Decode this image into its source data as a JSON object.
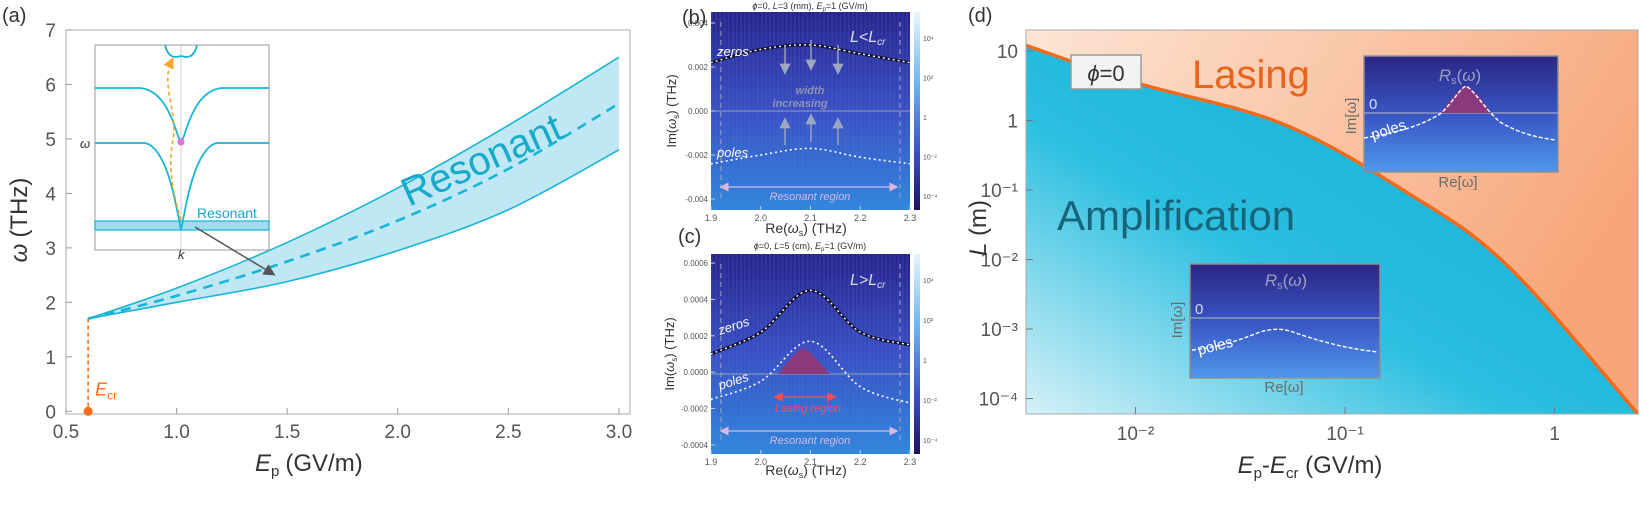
{
  "chart_data": [
    {
      "panel": "(a)",
      "type": "area",
      "xlabel_main": "E",
      "xlabel_sub": "p",
      "xlabel_unit": "(GV/m)",
      "ylabel_main": "ω",
      "ylabel_unit": "(THz)",
      "xlim": [
        0.5,
        3.05
      ],
      "ylim": [
        -0.05,
        7
      ],
      "xticks": [
        "0.5",
        "1.0",
        "1.5",
        "2.0",
        "2.5",
        "3.0"
      ],
      "yticks": [
        "0",
        "1",
        "2",
        "3",
        "4",
        "5",
        "6",
        "7"
      ],
      "band_lower": [
        [
          0.6,
          1.7
        ],
        [
          1.0,
          2.0
        ],
        [
          1.5,
          2.38
        ],
        [
          2.0,
          2.95
        ],
        [
          2.5,
          3.7
        ],
        [
          3.0,
          4.8
        ]
      ],
      "band_upper": [
        [
          0.6,
          1.7
        ],
        [
          1.0,
          2.26
        ],
        [
          1.5,
          3.1
        ],
        [
          2.0,
          4.1
        ],
        [
          2.5,
          5.25
        ],
        [
          3.0,
          6.5
        ]
      ],
      "center_line": [
        [
          0.6,
          1.7
        ],
        [
          1.0,
          2.12
        ],
        [
          1.5,
          2.75
        ],
        [
          2.0,
          3.5
        ],
        [
          2.5,
          4.45
        ],
        [
          3.0,
          5.65
        ]
      ],
      "band_label": "Resonant",
      "critical_point": {
        "x": 0.6,
        "y": 0,
        "label_main": "E",
        "label_sub": "cr"
      },
      "inset": {
        "xlabel": "k",
        "ylabel": "ω",
        "band_label": "Resonant"
      },
      "colors": {
        "band": "#bfe8f4",
        "line": "#17b5d6",
        "critical": "#ff6a13",
        "arrow": "#f0a830"
      }
    },
    {
      "panel": "(b)",
      "type": "heatmap",
      "title": "ϕ=0, L=3 (mm), E_p=1 (GV/m)",
      "xlabel": "Re(ω_s) (THz)",
      "ylabel": "Im(ω_s) (THz)",
      "xticks": [
        "1.9",
        "2.0",
        "2.1",
        "2.2",
        "2.3"
      ],
      "yticks": [
        "0.004",
        "0.002",
        "0.000",
        "-0.002",
        "-0.004"
      ],
      "corner_label": "L<L_cr",
      "zeros_label": "zeros",
      "poles_label": "poles",
      "note_line1": "width",
      "note_line2": "increasing",
      "region_label": "Resonant region",
      "colorbar_ticks": [
        "10⁴",
        "10²",
        "1",
        "10⁻²",
        "10⁻⁴"
      ],
      "zeros": {
        "x": [
          1.9,
          2.0,
          2.1,
          2.2,
          2.3
        ],
        "y": [
          0.0022,
          0.0028,
          0.003,
          0.0026,
          0.0022
        ]
      },
      "poles": {
        "x": [
          1.9,
          2.0,
          2.1,
          2.2,
          2.3
        ],
        "y": [
          -0.0024,
          -0.002,
          -0.0017,
          -0.0021,
          -0.0024
        ]
      }
    },
    {
      "panel": "(c)",
      "type": "heatmap",
      "title": "ϕ=0, L=5 (cm), E_p=1 (GV/m)",
      "xlabel": "Re(ω_s) (THz)",
      "ylabel": "Im(ω_s) (THz)",
      "xticks": [
        "1.9",
        "2.0",
        "2.1",
        "2.2",
        "2.3"
      ],
      "yticks": [
        "0.0006",
        "0.0004",
        "0.0002",
        "0.0000",
        "-0.0002",
        "-0.0004"
      ],
      "corner_label": "L>L_cr",
      "zeros_label": "zeros",
      "poles_label": "poles",
      "lasing_label": "Lasing region",
      "region_label": "Resonant region",
      "colorbar_ticks": [
        "10⁴",
        "10²",
        "1",
        "10⁻²",
        "10⁻⁴"
      ],
      "zeros": {
        "x": [
          1.9,
          2.0,
          2.1,
          2.2,
          2.3
        ],
        "y": [
          0.0001,
          0.00022,
          0.00045,
          0.00022,
          0.00015
        ]
      },
      "poles": {
        "x": [
          1.9,
          2.0,
          2.1,
          2.2,
          2.3
        ],
        "y": [
          -0.00015,
          -5e-05,
          0.00017,
          -8e-05,
          -0.00017
        ]
      }
    },
    {
      "panel": "(d)",
      "type": "area",
      "xscale": "log",
      "yscale": "log",
      "xlabel": "E_p-E_cr (GV/m)",
      "ylabel": "L (m)",
      "xlim": [
        0.003,
        2.5
      ],
      "ylim": [
        6e-05,
        20
      ],
      "xticks": [
        "10⁻²",
        "10⁻¹",
        "1"
      ],
      "yticks": [
        "10",
        "1",
        "10⁻¹",
        "10⁻²",
        "10⁻³",
        "10⁻⁴"
      ],
      "boundary": [
        [
          0.003,
          12
        ],
        [
          0.01,
          3.5
        ],
        [
          0.05,
          0.9
        ],
        [
          0.2,
          0.09
        ],
        [
          0.6,
          0.008
        ],
        [
          2.5,
          6e-05
        ]
      ],
      "upper_region_label": "Lasing",
      "lower_region_label": "Amplification",
      "phase_label": "ϕ=0",
      "inset_upper": {
        "title": "R_s(ω)",
        "ylabel": "Im[ω]",
        "xlabel": "Re[ω]",
        "zero": "0",
        "poles_label": "poles"
      },
      "inset_lower": {
        "title": "R_s(ω)",
        "ylabel": "Im[ω]",
        "xlabel": "Re[ω]",
        "zero": "0",
        "poles_label": "poles"
      },
      "colors": {
        "boundary": "#f26a1b",
        "lasing": "#fbc5a3",
        "amplification": "#1fb8da"
      }
    }
  ]
}
